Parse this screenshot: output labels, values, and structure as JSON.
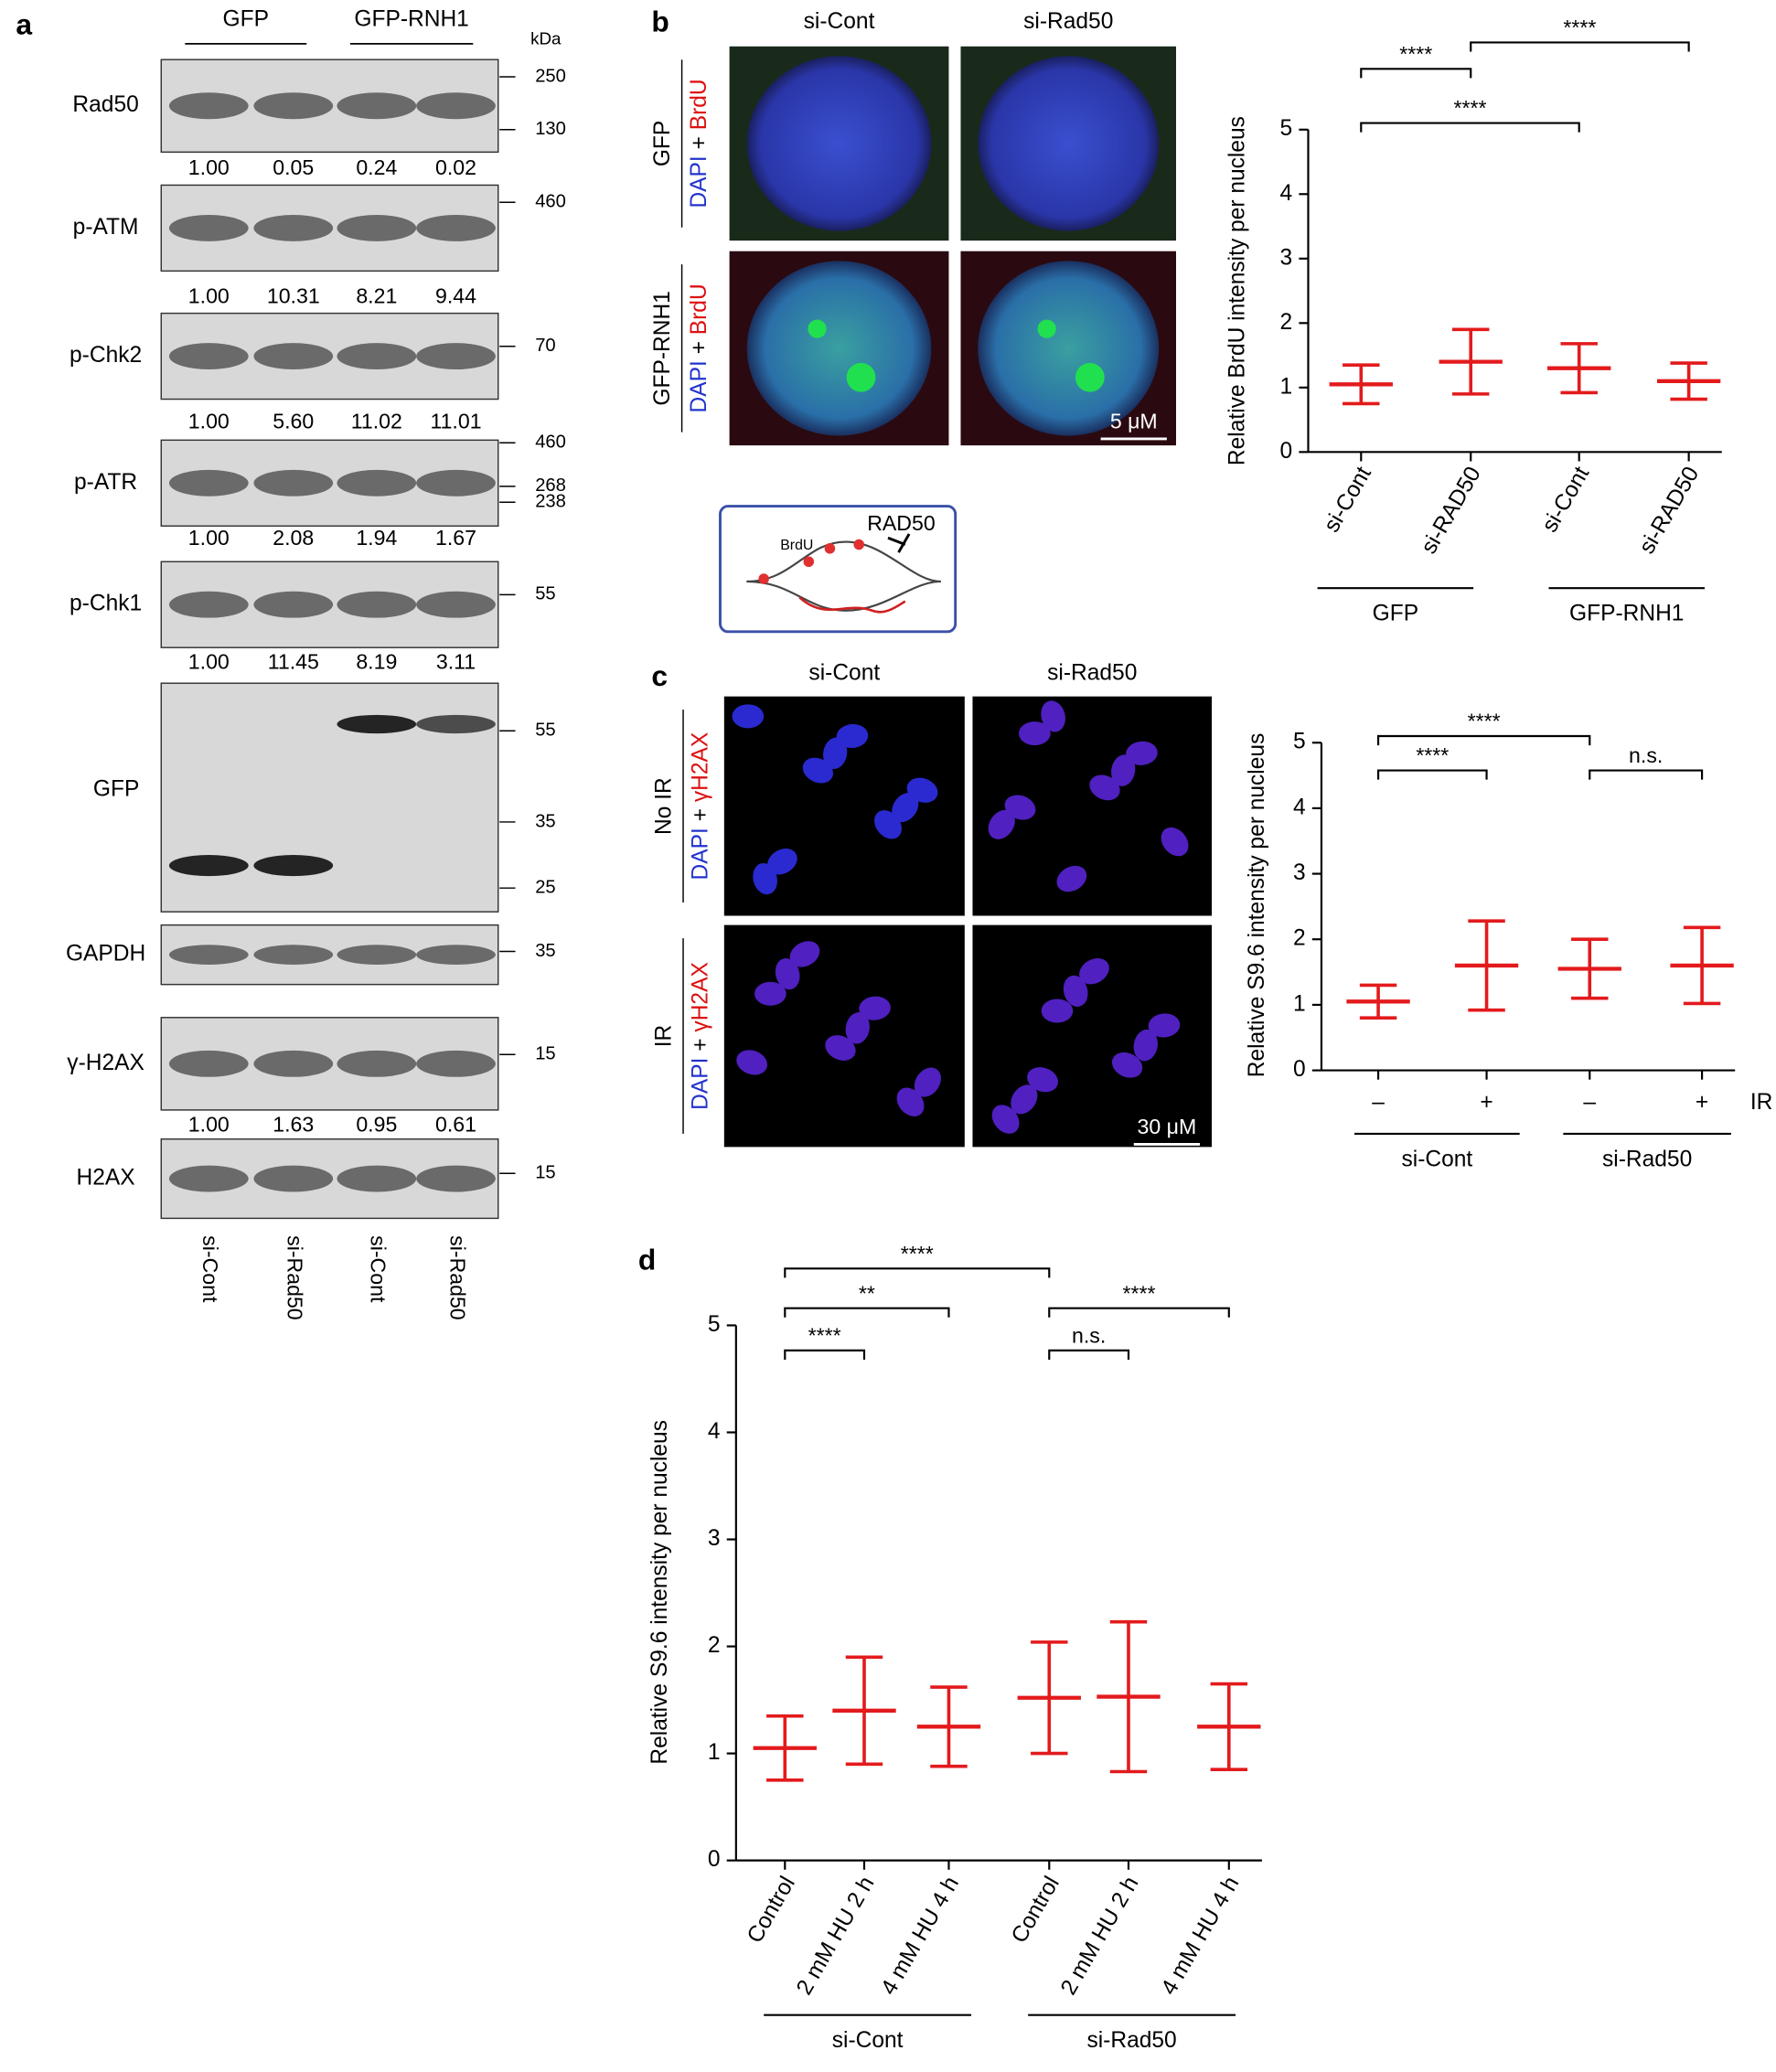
{
  "panel_a": {
    "label": "a",
    "groups": [
      "GFP",
      "GFP-RNH1"
    ],
    "kda_label": "kDa",
    "blots": [
      {
        "name": "Rad50",
        "markers": [
          "250",
          "130"
        ],
        "quant": [
          "1.00",
          "0.05",
          "0.24",
          "0.02"
        ]
      },
      {
        "name": "p-ATM",
        "markers": [
          "460"
        ],
        "quant": [
          "1.00",
          "10.31",
          "8.21",
          "9.44"
        ]
      },
      {
        "name": "p-Chk2",
        "markers": [
          "70"
        ],
        "quant": [
          "1.00",
          "5.60",
          "11.02",
          "11.01"
        ]
      },
      {
        "name": "p-ATR",
        "markers": [
          "460",
          "268",
          "238"
        ],
        "quant": [
          "1.00",
          "2.08",
          "1.94",
          "1.67"
        ]
      },
      {
        "name": "p-Chk1",
        "markers": [
          "55"
        ],
        "quant": [
          "1.00",
          "11.45",
          "8.19",
          "3.11"
        ]
      },
      {
        "name": "GFP",
        "markers": [
          "55",
          "35",
          "25"
        ]
      },
      {
        "name": "GAPDH",
        "markers": [
          "35"
        ]
      },
      {
        "name": "γ-H2AX",
        "markers": [
          "15"
        ],
        "quant": [
          "1.00",
          "1.63",
          "0.95",
          "0.61"
        ]
      },
      {
        "name": "H2AX",
        "markers": [
          "15"
        ]
      }
    ],
    "lanes": [
      "si-Cont",
      "si-Rad50",
      "si-Cont",
      "si-Rad50"
    ]
  },
  "panel_b": {
    "label": "b",
    "columns": [
      "si-Cont",
      "si-Rad50"
    ],
    "rows": [
      {
        "name": "GFP",
        "stain_a": "DAPI",
        "plus": " + ",
        "stain_b": "BrdU"
      },
      {
        "name": "GFP-RNH1",
        "stain_a": "DAPI",
        "plus": " + ",
        "stain_b": "BrdU"
      }
    ],
    "scale_bar": "5 μM",
    "schematic": {
      "label_a": "BrdU",
      "label_b": "RAD50"
    }
  },
  "panel_c": {
    "label": "c",
    "columns": [
      "si-Cont",
      "si-Rad50"
    ],
    "rows": [
      {
        "name": "No IR",
        "stain_a": "DAPI",
        "plus": " + ",
        "stain_b": "γH2AX"
      },
      {
        "name": "IR",
        "stain_a": "DAPI",
        "plus": " + ",
        "stain_b": "γH2AX"
      }
    ],
    "scale_bar": "30 μM"
  },
  "panel_d": {
    "label": "d"
  },
  "chart_data": [
    {
      "type": "dot",
      "y_label": "Relative BrdU intensity per nucleus",
      "categories": [
        "si-Cont",
        "si-RAD50",
        "si-Cont",
        "si-RAD50"
      ],
      "groups": [
        "GFP",
        "GFP-RNH1"
      ],
      "values": [
        1.05,
        1.4,
        1.3,
        1.1
      ],
      "errors": [
        0.3,
        0.5,
        0.38,
        0.28
      ],
      "color": "#e31a1c",
      "ylim": [
        0,
        5
      ],
      "yticks": [
        0,
        1,
        2,
        3,
        4,
        5
      ],
      "brackets": [
        {
          "pair": [
            0,
            1
          ],
          "label": "****"
        },
        {
          "pair": [
            0,
            2
          ],
          "label": "****"
        },
        {
          "pair": [
            1,
            3
          ],
          "label": "****"
        }
      ]
    },
    {
      "type": "dot",
      "y_label": "Relative S9.6 intensity per nucleus",
      "categories": [
        "–",
        "+",
        "–",
        "+"
      ],
      "x_label": "IR",
      "groups": [
        "si-Cont",
        "si-Rad50"
      ],
      "values": [
        1.05,
        1.6,
        1.55,
        1.6
      ],
      "errors": [
        0.25,
        0.68,
        0.45,
        0.58
      ],
      "color": "#e31a1c",
      "ylim": [
        0,
        5
      ],
      "yticks": [
        0,
        1,
        2,
        3,
        4,
        5
      ],
      "brackets": [
        {
          "pair": [
            0,
            1
          ],
          "label": "****"
        },
        {
          "pair": [
            0,
            2
          ],
          "label": "****"
        },
        {
          "pair": [
            2,
            3
          ],
          "label": "n.s."
        }
      ]
    },
    {
      "type": "dot",
      "y_label": "Relative S9.6 intensity per nucleus",
      "categories": [
        "Control",
        "2 mM HU 2 h",
        "4 mM HU 4 h",
        "Control",
        "2 mM HU 2 h",
        "4 mM HU 4 h"
      ],
      "groups": [
        "si-Cont",
        "si-Rad50"
      ],
      "values": [
        1.05,
        1.4,
        1.25,
        1.52,
        1.53,
        1.25
      ],
      "errors": [
        0.3,
        0.5,
        0.37,
        0.52,
        0.7,
        0.4
      ],
      "color": "#e31a1c",
      "ylim": [
        0,
        5
      ],
      "yticks": [
        0,
        1,
        2,
        3,
        4,
        5
      ],
      "brackets": [
        {
          "pair": [
            0,
            1
          ],
          "label": "****"
        },
        {
          "pair": [
            0,
            2
          ],
          "label": "**"
        },
        {
          "pair": [
            0,
            3
          ],
          "label": "****"
        },
        {
          "pair": [
            3,
            4
          ],
          "label": "n.s."
        },
        {
          "pair": [
            3,
            5
          ],
          "label": "****"
        }
      ]
    }
  ]
}
